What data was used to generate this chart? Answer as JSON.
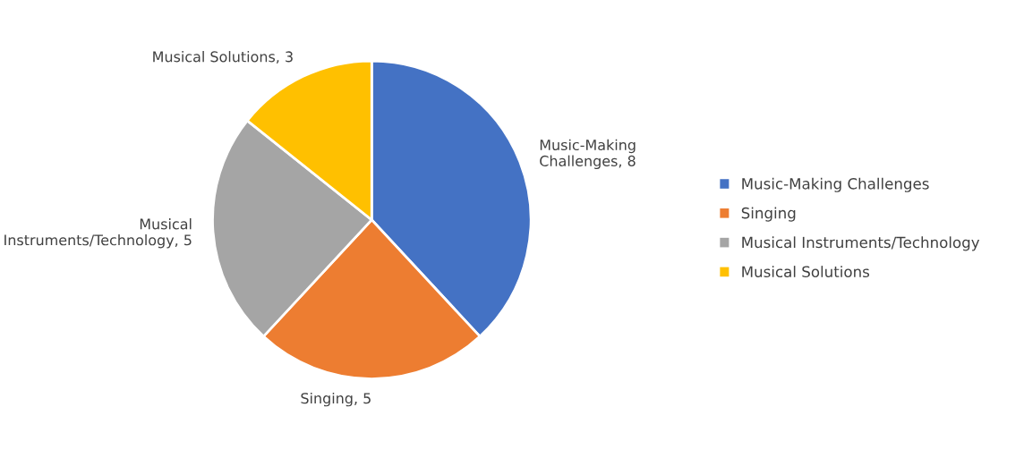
{
  "chart_data": {
    "type": "pie",
    "categories": [
      "Music-Making Challenges",
      "Singing",
      "Musical Instruments/Technology",
      "Musical Solutions"
    ],
    "values": [
      8,
      5,
      5,
      3
    ],
    "colors": [
      "#4472c4",
      "#ed7d31",
      "#a5a5a5",
      "#ffc000"
    ],
    "value_labels": [
      "Music-Making\nChallenges, 8",
      "Singing, 5",
      "Musical\nInstruments/Technology, 5",
      "Musical Solutions, 3"
    ],
    "legend": "right"
  }
}
